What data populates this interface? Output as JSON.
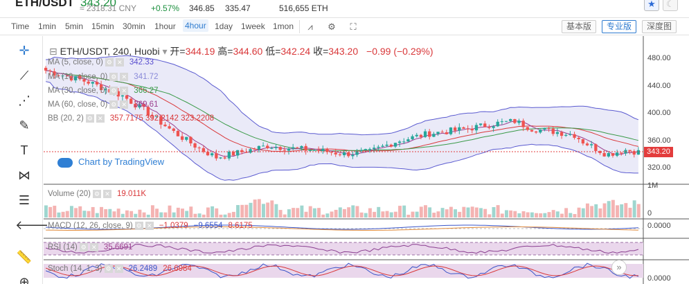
{
  "ticker": {
    "pair": "ETH/USDT",
    "price": "343.20",
    "cny": "≈ 2318.31 CNY",
    "change_pct": "+0.57%",
    "high_24h": "346.85",
    "low_24h": "335.47",
    "volume_24h": "516,655 ETH"
  },
  "toolbar": {
    "timeframes": [
      "Time",
      "1min",
      "5min",
      "15min",
      "30min",
      "1hour",
      "4hour",
      "1day",
      "1week",
      "1mon"
    ],
    "active_timeframe": "4hour",
    "views": [
      "基本版",
      "专业版",
      "深度图"
    ],
    "active_view": "专业版"
  },
  "legend": {
    "title": "ETH/USDT, 240, Huobi",
    "open_label": "开=",
    "open": "344.19",
    "high_label": "高=",
    "high": "344.60",
    "low_label": "低=",
    "low": "342.24",
    "close_label": "收=",
    "close": "343.20",
    "change": "−0.99 (−0.29%)"
  },
  "indicators": [
    {
      "label": "MA (5, close, 0)",
      "value": "342.33",
      "color": "#5a4fcf"
    },
    {
      "label": "MA (10, close, 0)",
      "value": "341.72",
      "color": "#8a8ad8"
    },
    {
      "label": "MA (30, close, 0)",
      "value": "366.27",
      "color": "#3a9a48"
    },
    {
      "label": "MA (60, close, 0)",
      "value": "369.61",
      "color": "#9b3f8f"
    },
    {
      "label": "BB (20, 2)",
      "value": "357.7175   392.2142   323.2208",
      "color": "#d9383a"
    }
  ],
  "watermark": "Chart by TradingView",
  "price_axis": [
    "480.00",
    "440.00",
    "400.00",
    "360.00",
    "320.00"
  ],
  "current_price_tag": "343.20",
  "volume": {
    "label": "Volume (20)",
    "value": "19.011K",
    "axis_top": "1M",
    "axis_zero": "0"
  },
  "macd": {
    "label": "MACD (12, 26, close, 9)",
    "v1": "−1.0379",
    "v2": "−9.6554",
    "v3": "8.6175",
    "axis": "0.0000"
  },
  "rsi": {
    "label": "RSI (14)",
    "value": "35.6691"
  },
  "stoch": {
    "label": "Stoch (14, 1, 3)",
    "v1": "26.2489",
    "v2": "26.6984",
    "axis": "0.0000"
  },
  "colors": {
    "up": "#26a69a",
    "down": "#ef5350",
    "accent": "#2e7bcf",
    "price_line": "#e33c3c"
  }
}
